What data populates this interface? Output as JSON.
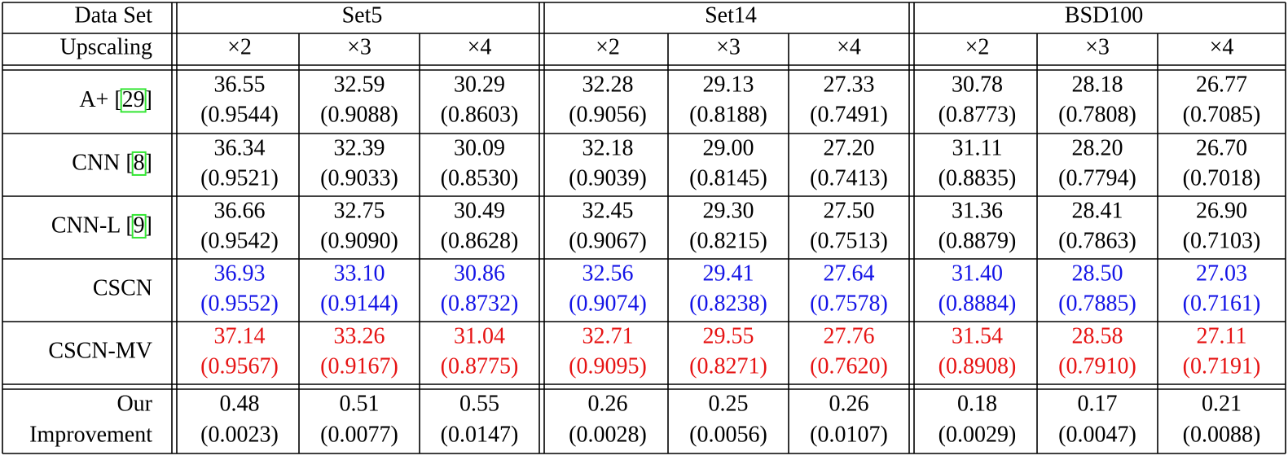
{
  "header": {
    "dataset_label": "Data Set",
    "upscaling_label": "Upscaling",
    "datasets": [
      "Set5",
      "Set14",
      "BSD100"
    ],
    "scales": [
      "×2",
      "×3",
      "×4"
    ]
  },
  "colors": {
    "text": "#000000",
    "cscn": "#1414e6",
    "cscn_mv": "#e61414",
    "citation_box": "#33e633"
  },
  "rows": [
    {
      "method": "A+ [",
      "citation": "29",
      "close": "]",
      "style": "normal",
      "psnr": [
        "36.55",
        "32.59",
        "30.29",
        "32.28",
        "29.13",
        "27.33",
        "30.78",
        "28.18",
        "26.77"
      ],
      "ssim": [
        "(0.9544)",
        "(0.9088)",
        "(0.8603)",
        "(0.9056)",
        "(0.8188)",
        "(0.7491)",
        "(0.8773)",
        "(0.7808)",
        "(0.7085)"
      ]
    },
    {
      "method": "CNN [",
      "citation": "8",
      "close": "]",
      "style": "normal",
      "psnr": [
        "36.34",
        "32.39",
        "30.09",
        "32.18",
        "29.00",
        "27.20",
        "31.11",
        "28.20",
        "26.70"
      ],
      "ssim": [
        "(0.9521)",
        "(0.9033)",
        "(0.8530)",
        "(0.9039)",
        "(0.8145)",
        "(0.7413)",
        "(0.8835)",
        "(0.7794)",
        "(0.7018)"
      ]
    },
    {
      "method": "CNN-L [",
      "citation": "9",
      "close": "]",
      "style": "normal",
      "psnr": [
        "36.66",
        "32.75",
        "30.49",
        "32.45",
        "29.30",
        "27.50",
        "31.36",
        "28.41",
        "26.90"
      ],
      "ssim": [
        "(0.9542)",
        "(0.9090)",
        "(0.8628)",
        "(0.9067)",
        "(0.8215)",
        "(0.7513)",
        "(0.8879)",
        "(0.7863)",
        "(0.7103)"
      ]
    },
    {
      "method": "CSCN",
      "citation": "",
      "close": "",
      "style": "cscn",
      "psnr": [
        "36.93",
        "33.10",
        "30.86",
        "32.56",
        "29.41",
        "27.64",
        "31.40",
        "28.50",
        "27.03"
      ],
      "ssim": [
        "(0.9552)",
        "(0.9144)",
        "(0.8732)",
        "(0.9074)",
        "(0.8238)",
        "(0.7578)",
        "(0.8884)",
        "(0.7885)",
        "(0.7161)"
      ]
    },
    {
      "method": "CSCN-MV",
      "citation": "",
      "close": "",
      "style": "cscn_mv",
      "psnr": [
        "37.14",
        "33.26",
        "31.04",
        "32.71",
        "29.55",
        "27.76",
        "31.54",
        "28.58",
        "27.11"
      ],
      "ssim": [
        "(0.9567)",
        "(0.9167)",
        "(0.8775)",
        "(0.9095)",
        "(0.8271)",
        "(0.7620)",
        "(0.8908)",
        "(0.7910)",
        "(0.7191)"
      ]
    }
  ],
  "improvement": {
    "label_line1": "Our",
    "label_line2": "Improvement",
    "psnr": [
      "0.48",
      "0.51",
      "0.55",
      "0.26",
      "0.25",
      "0.26",
      "0.18",
      "0.17",
      "0.21"
    ],
    "ssim": [
      "(0.0023)",
      "(0.0077)",
      "(0.0147)",
      "(0.0028)",
      "(0.0056)",
      "(0.0107)",
      "(0.0029)",
      "(0.0047)",
      "(0.0088)"
    ]
  }
}
